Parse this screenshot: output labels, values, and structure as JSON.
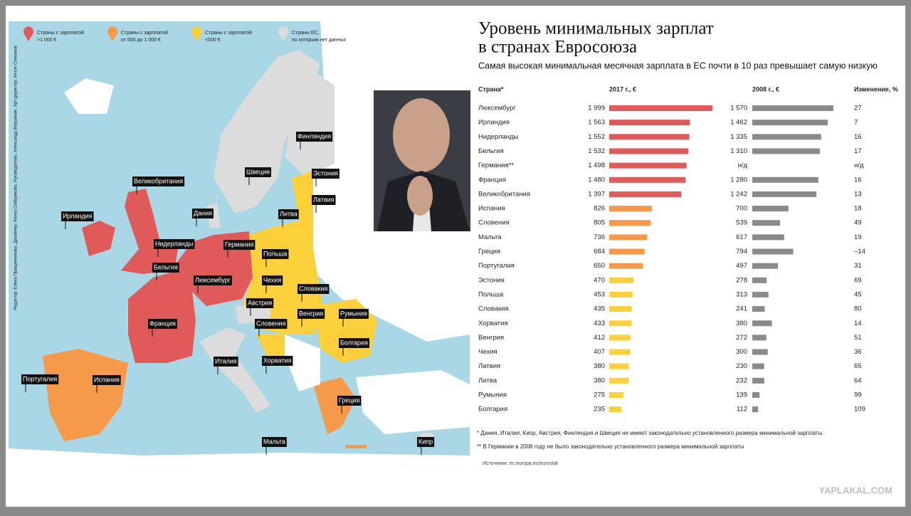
{
  "header": {
    "title_lines": [
      "Уровень минимальных зарплат",
      "в странах Евросоюза"
    ],
    "subtitle": "Самая высокая минимальная месячная зарплата в ЕС почти в 10 раз превышает самую низкую"
  },
  "map": {
    "legend": [
      {
        "line1": "Страны с зарплатой",
        "line2": ">1 000 €",
        "color": "#e05a59"
      },
      {
        "line1": "Страны с зарплатой",
        "line2": "от 500 до 1 000 €",
        "color": "#f7994a"
      },
      {
        "line1": "Страны с зарплатой",
        "line2": "<500 €",
        "color": "#fbd03a"
      },
      {
        "line1": "Страны ЕС,",
        "line2": "по которым нет данных",
        "color": "#dcdcdc"
      }
    ],
    "credits": "Редактор: Елена Прищенникова. Дизайнер: Алина Сибирякова. Руководитель: Александр Вершинин. Арт-директор: Антон Степанов",
    "labels": [
      "Финляндия",
      "Швеция",
      "Эстония",
      "Латвия",
      "Литва",
      "Великобритания",
      "Ирландия",
      "Дания",
      "Нидерланды",
      "Германия",
      "Польша",
      "Бельгия",
      "Люксембург",
      "Чехия",
      "Словакия",
      "Австрия",
      "Венгрия",
      "Румыния",
      "Словения",
      "Франция",
      "Болгария",
      "Хорватия",
      "Италия",
      "Португалия",
      "Испания",
      "Греция",
      "Мальта",
      "Кипр"
    ]
  },
  "table": {
    "headers": [
      "Страна*",
      "2017 г., €",
      "2008 г., €",
      "Изменение, %"
    ],
    "bar_color_2008": "#8a8a8a",
    "rows": [
      {
        "country": "Люксембург",
        "v2017": {
          "value": 1999,
          "label": "1 999"
        },
        "v2008": {
          "value": 1570,
          "label": "1 570"
        },
        "change": 27,
        "color": "#e05a59"
      },
      {
        "country": "Ирландия",
        "v2017": {
          "value": 1563,
          "label": "1 563"
        },
        "v2008": {
          "value": 1462,
          "label": "1 462"
        },
        "change": 7,
        "color": "#e05a59"
      },
      {
        "country": "Нидерланды",
        "v2017": {
          "value": 1552,
          "label": "1 552"
        },
        "v2008": {
          "value": 1335,
          "label": "1 335"
        },
        "change": 16,
        "color": "#e05a59"
      },
      {
        "country": "Бельгия",
        "v2017": {
          "value": 1532,
          "label": "1 532"
        },
        "v2008": {
          "value": 1310,
          "label": "1 310"
        },
        "change": 17,
        "color": "#e05a59"
      },
      {
        "country": "Германия**",
        "v2017": {
          "value": 1498,
          "label": "1 498"
        },
        "v2008": {
          "value": null,
          "label": "н/д"
        },
        "change": {
          "value": null,
          "label": "н/д"
        },
        "color": "#e05a59"
      },
      {
        "country": "Франция",
        "v2017": {
          "value": 1480,
          "label": "1 480"
        },
        "v2008": {
          "value": 1280,
          "label": "1 280"
        },
        "change": 16,
        "color": "#e05a59"
      },
      {
        "country": "Великобритания",
        "v2017": {
          "value": 1397,
          "label": "1 397"
        },
        "v2008": {
          "value": 1242,
          "label": "1 242"
        },
        "change": 13,
        "color": "#e05a59"
      },
      {
        "country": "Испания",
        "v2017": 826,
        "v2008": 700,
        "change": 18,
        "color": "#f7994a"
      },
      {
        "country": "Словения",
        "v2017": 805,
        "v2008": 539,
        "change": 49,
        "color": "#f7994a"
      },
      {
        "country": "Мальта",
        "v2017": 736,
        "v2008": 617,
        "change": 19,
        "color": "#f7994a"
      },
      {
        "country": "Греция",
        "v2017": 684,
        "v2008": 794,
        "change": {
          "value": -14,
          "label": "–14"
        },
        "color": "#f7994a"
      },
      {
        "country": "Португалия",
        "v2017": 650,
        "v2008": 497,
        "change": 31,
        "color": "#f7994a"
      },
      {
        "country": "Эстония",
        "v2017": 470,
        "v2008": 278,
        "change": 69,
        "color": "#fbd03a"
      },
      {
        "country": "Польша",
        "v2017": 453,
        "v2008": 313,
        "change": 45,
        "color": "#fbd03a"
      },
      {
        "country": "Словакия",
        "v2017": 435,
        "v2008": 241,
        "change": 80,
        "color": "#fbd03a"
      },
      {
        "country": "Хорватия",
        "v2017": 433,
        "v2008": 380,
        "change": 14,
        "color": "#fbd03a"
      },
      {
        "country": "Венгрия",
        "v2017": 412,
        "v2008": 272,
        "change": 51,
        "color": "#fbd03a"
      },
      {
        "country": "Чехия",
        "v2017": 407,
        "v2008": 300,
        "change": 36,
        "color": "#fbd03a"
      },
      {
        "country": "Латвия",
        "v2017": 380,
        "v2008": 230,
        "change": 65,
        "color": "#fbd03a"
      },
      {
        "country": "Литва",
        "v2017": 380,
        "v2008": 232,
        "change": 64,
        "color": "#fbd03a"
      },
      {
        "country": "Румыния",
        "v2017": 275,
        "v2008": 139,
        "change": 99,
        "color": "#fbd03a"
      },
      {
        "country": "Болгария",
        "v2017": 235,
        "v2008": 112,
        "change": 109,
        "color": "#fbd03a"
      }
    ]
  },
  "footnotes": [
    "* Дания, Италия, Кипр, Австрия, Финляндия и Швеция не имеют законодательно установленного размера минимальной зарплаты",
    "** В Германии в 2008 году не было законодательно установленного размера минимальной зарплаты"
  ],
  "source": "Источники: ec.europa.eu/eurostat",
  "watermark": "YAPLAKAL.COM"
}
